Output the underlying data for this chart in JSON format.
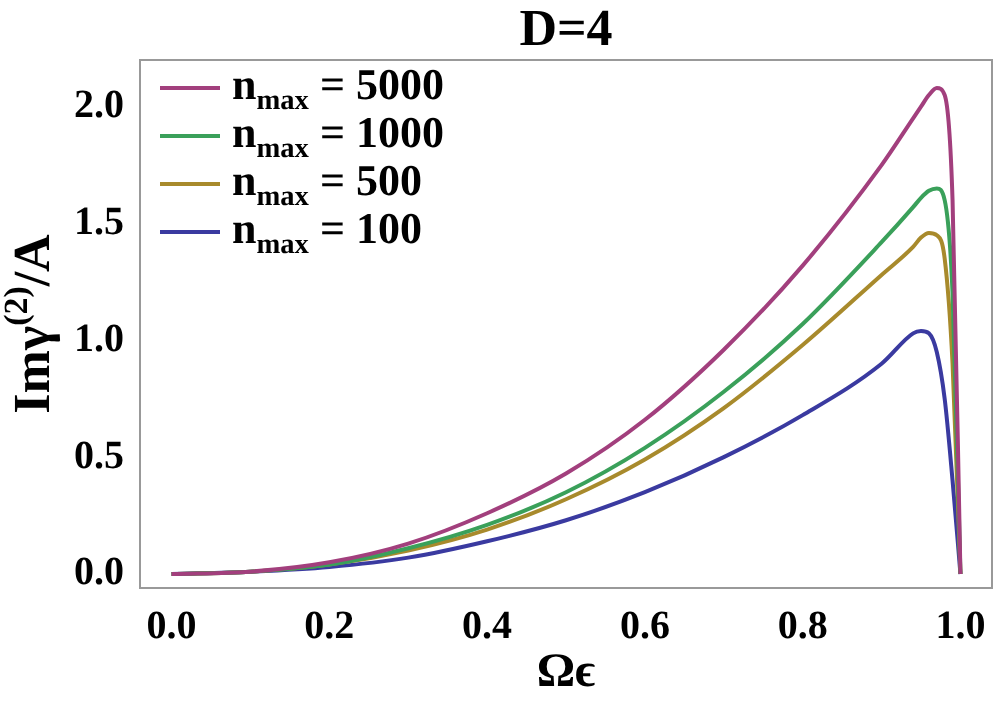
{
  "chart_data": {
    "type": "line",
    "title": "D=4",
    "xlabel": "Ωϵ",
    "ylabel": "Imγ$^{(2)}$/A",
    "x": [
      0,
      0.1,
      0.2,
      0.3,
      0.4,
      0.5,
      0.6,
      0.7,
      0.8,
      0.9,
      0.94,
      0.95,
      0.96,
      0.97,
      0.98,
      0.99,
      1.0
    ],
    "series": [
      {
        "name": "n$_{max}$ = 5000",
        "color": "#a23f7d",
        "values": [
          0,
          0.01,
          0.05,
          0.13,
          0.26,
          0.43,
          0.66,
          0.96,
          1.32,
          1.75,
          1.95,
          2.0,
          2.05,
          2.08,
          2.05,
          1.6,
          0
        ]
      },
      {
        "name": "n$_{max}$ = 1000",
        "color": "#3aa05a",
        "values": [
          0,
          0.01,
          0.04,
          0.11,
          0.21,
          0.35,
          0.54,
          0.78,
          1.07,
          1.42,
          1.57,
          1.61,
          1.64,
          1.65,
          1.6,
          1.2,
          0
        ]
      },
      {
        "name": "n$_{max}$ = 500",
        "color": "#a88a2c",
        "values": [
          0,
          0.01,
          0.04,
          0.1,
          0.19,
          0.32,
          0.49,
          0.71,
          0.98,
          1.28,
          1.4,
          1.44,
          1.46,
          1.45,
          1.35,
          0.9,
          0
        ]
      },
      {
        "name": "n$_{max}$ = 100",
        "color": "#3a3aa0",
        "values": [
          0,
          0.01,
          0.03,
          0.07,
          0.14,
          0.23,
          0.35,
          0.5,
          0.68,
          0.9,
          1.03,
          1.04,
          1.03,
          0.95,
          0.75,
          0.4,
          0
        ]
      }
    ],
    "xlim": [
      -0.04,
      1.04
    ],
    "ylim": [
      -0.06,
      2.2
    ],
    "xticks": [
      {
        "value": 0,
        "label": "0.0"
      },
      0.2,
      0.4,
      0.6,
      0.8,
      {
        "value": 1,
        "label": "1.0"
      }
    ],
    "yticks": [
      {
        "value": 0,
        "label": "0.0"
      },
      0.5,
      {
        "value": 1,
        "label": "1.0"
      },
      1.5,
      {
        "value": 2,
        "label": "2.0"
      }
    ],
    "grid": false,
    "legend": "top left",
    "line_style": "solid",
    "marker": "none"
  }
}
